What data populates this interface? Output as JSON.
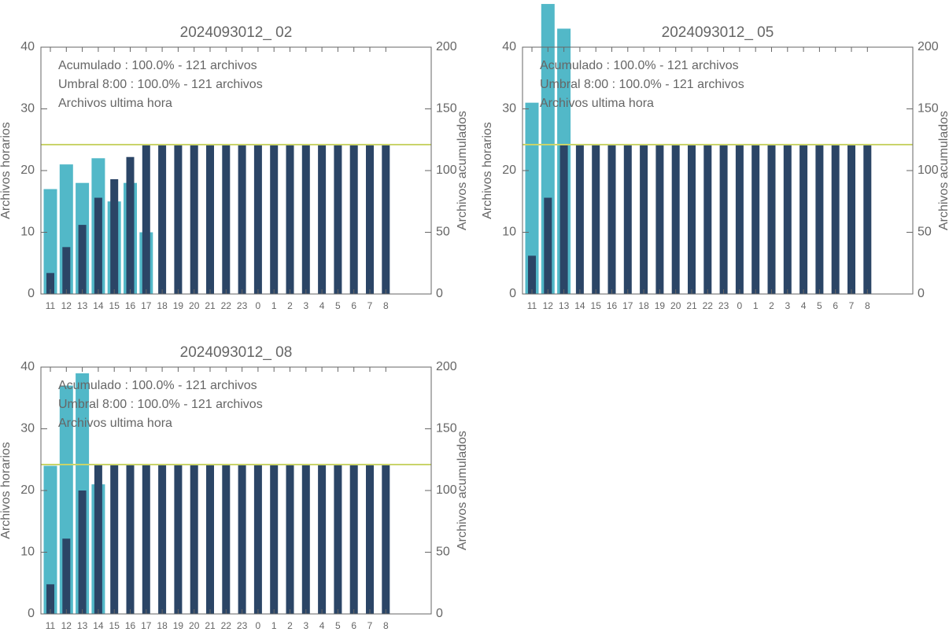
{
  "chart_data": [
    {
      "type": "bar",
      "title": "2024093012_ 02",
      "categories": [
        "11",
        "12",
        "13",
        "14",
        "15",
        "16",
        "17",
        "18",
        "19",
        "20",
        "21",
        "22",
        "23",
        "0",
        "1",
        "2",
        "3",
        "4",
        "5",
        "6",
        "7",
        "8"
      ],
      "series": [
        {
          "name": "Archivos ultima hora",
          "color": "#52b8c8",
          "values": [
            17,
            21,
            18,
            22,
            15,
            18,
            10,
            0,
            0,
            0,
            0,
            0,
            0,
            0,
            0,
            0,
            0,
            0,
            0,
            0,
            0,
            0
          ]
        },
        {
          "name": "Acumulado : 100.0% - 121 archivos",
          "color": "#2b4566",
          "axis": "y2",
          "values": [
            17,
            38,
            56,
            78,
            93,
            111,
            121,
            121,
            121,
            121,
            121,
            121,
            121,
            121,
            121,
            121,
            121,
            121,
            121,
            121,
            121,
            121
          ]
        }
      ],
      "threshold": {
        "name": "Umbral 8:00 : 100.0% - 121 archivos",
        "color": "#c9d46a",
        "axis": "y2",
        "value": 121
      },
      "ylabel": "Archivos horarios",
      "y2label": "Archivos acumulados",
      "ylim": [
        0,
        40
      ],
      "yticks": [
        0,
        10,
        20,
        30,
        40
      ],
      "y2lim": [
        0,
        200
      ],
      "y2ticks": [
        0,
        50,
        100,
        150,
        200
      ]
    },
    {
      "type": "bar",
      "title": "2024093012_ 05",
      "categories": [
        "11",
        "12",
        "13",
        "14",
        "15",
        "16",
        "17",
        "18",
        "19",
        "20",
        "21",
        "22",
        "23",
        "0",
        "1",
        "2",
        "3",
        "4",
        "5",
        "6",
        "7",
        "8"
      ],
      "series": [
        {
          "name": "Archivos ultima hora",
          "color": "#52b8c8",
          "values": [
            31,
            47,
            43,
            0,
            0,
            0,
            0,
            0,
            0,
            0,
            0,
            0,
            0,
            0,
            0,
            0,
            0,
            0,
            0,
            0,
            0,
            0
          ]
        },
        {
          "name": "Acumulado : 100.0% - 121 archivos",
          "color": "#2b4566",
          "axis": "y2",
          "values": [
            31,
            78,
            121,
            121,
            121,
            121,
            121,
            121,
            121,
            121,
            121,
            121,
            121,
            121,
            121,
            121,
            121,
            121,
            121,
            121,
            121,
            121
          ]
        }
      ],
      "threshold": {
        "name": "Umbral 8:00 : 100.0% - 121 archivos",
        "color": "#c9d46a",
        "axis": "y2",
        "value": 121
      },
      "ylabel": "Archivos horarios",
      "y2label": "Archivos acumulados",
      "ylim": [
        0,
        40
      ],
      "yticks": [
        0,
        10,
        20,
        30,
        40
      ],
      "y2lim": [
        0,
        200
      ],
      "y2ticks": [
        0,
        50,
        100,
        150,
        200
      ]
    },
    {
      "type": "bar",
      "title": "2024093012_ 08",
      "categories": [
        "11",
        "12",
        "13",
        "14",
        "15",
        "16",
        "17",
        "18",
        "19",
        "20",
        "21",
        "22",
        "23",
        "0",
        "1",
        "2",
        "3",
        "4",
        "5",
        "6",
        "7",
        "8"
      ],
      "series": [
        {
          "name": "Archivos ultima hora",
          "color": "#52b8c8",
          "values": [
            24,
            37,
            39,
            21,
            0,
            0,
            0,
            0,
            0,
            0,
            0,
            0,
            0,
            0,
            0,
            0,
            0,
            0,
            0,
            0,
            0,
            0
          ]
        },
        {
          "name": "Acumulado : 100.0% - 121 archivos",
          "color": "#2b4566",
          "axis": "y2",
          "values": [
            24,
            61,
            100,
            121,
            121,
            121,
            121,
            121,
            121,
            121,
            121,
            121,
            121,
            121,
            121,
            121,
            121,
            121,
            121,
            121,
            121,
            121
          ]
        }
      ],
      "threshold": {
        "name": "Umbral 8:00 : 100.0% - 121 archivos",
        "color": "#c9d46a",
        "axis": "y2",
        "value": 121
      },
      "ylabel": "Archivos horarios",
      "y2label": "Archivos acumulados",
      "ylim": [
        0,
        40
      ],
      "yticks": [
        0,
        10,
        20,
        30,
        40
      ],
      "y2lim": [
        0,
        200
      ],
      "y2ticks": [
        0,
        50,
        100,
        150,
        200
      ]
    }
  ]
}
